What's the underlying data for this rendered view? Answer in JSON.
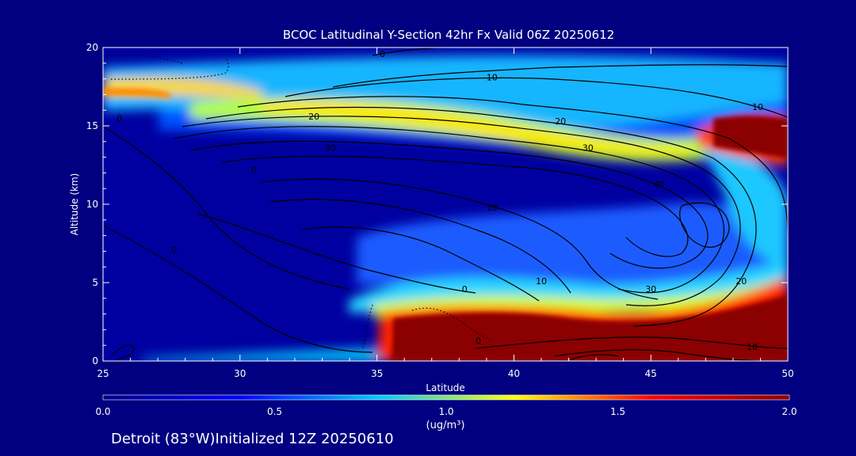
{
  "title": "BCOC Latitudinal Y-Section 42hr  Fx Valid 06Z 20250612",
  "footer": "Detroit (83°W)Initialized 12Z 20250610",
  "chart_data": {
    "type": "heatmap",
    "xlabel": "Latitude",
    "ylabel": "Altitude (km)",
    "xlim": [
      25,
      50
    ],
    "ylim": [
      0,
      20
    ],
    "x_ticks": [
      25,
      30,
      35,
      40,
      45,
      50
    ],
    "y_ticks": [
      0,
      5,
      10,
      15,
      20
    ],
    "colorbar": {
      "label": "(ug/m³)",
      "range": [
        0.0,
        2.0
      ],
      "ticks": [
        "0.0",
        "0.5",
        "1.0",
        "1.5",
        "2.0"
      ],
      "colors": [
        "#00008b",
        "#0000ff",
        "#00c8ff",
        "#ffff00",
        "#ff0000",
        "#8b0000"
      ]
    },
    "contour_labels": [
      {
        "text": "0",
        "x": 35.2,
        "y": 19.6
      },
      {
        "text": "10",
        "x": 39.2,
        "y": 18.1
      },
      {
        "text": "10",
        "x": 48.9,
        "y": 16.2
      },
      {
        "text": "0",
        "x": 25.6,
        "y": 15.5
      },
      {
        "text": "20",
        "x": 32.7,
        "y": 15.6
      },
      {
        "text": "20",
        "x": 41.7,
        "y": 15.3
      },
      {
        "text": "30",
        "x": 33.3,
        "y": 13.6
      },
      {
        "text": "30",
        "x": 42.7,
        "y": 13.6
      },
      {
        "text": "0",
        "x": 30.5,
        "y": 12.2
      },
      {
        "text": "40",
        "x": 45.3,
        "y": 11.3
      },
      {
        "text": "10",
        "x": 39.2,
        "y": 9.8
      },
      {
        "text": "0",
        "x": 27.6,
        "y": 7.1
      },
      {
        "text": "10",
        "x": 41.0,
        "y": 5.1
      },
      {
        "text": "30",
        "x": 45.0,
        "y": 4.6
      },
      {
        "text": "20",
        "x": 48.3,
        "y": 5.1
      },
      {
        "text": "0",
        "x": 38.2,
        "y": 4.6
      },
      {
        "text": "0",
        "x": 38.7,
        "y": 1.3
      },
      {
        "text": "10",
        "x": 48.7,
        "y": 0.9
      }
    ]
  }
}
